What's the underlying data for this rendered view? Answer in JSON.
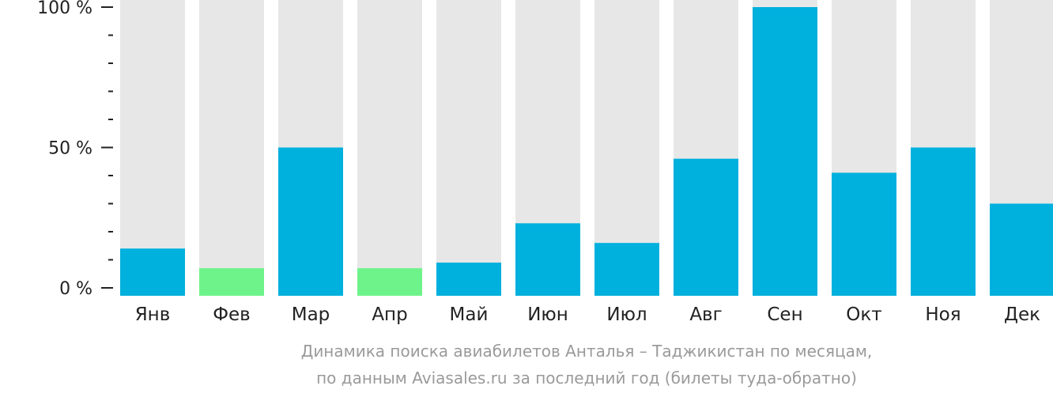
{
  "chart_data": {
    "type": "bar",
    "categories": [
      "Янв",
      "Фев",
      "Мар",
      "Апр",
      "Май",
      "Июн",
      "Июл",
      "Авг",
      "Сен",
      "Окт",
      "Ноя",
      "Дек"
    ],
    "values": [
      14,
      7,
      50,
      7,
      9,
      23,
      16,
      46,
      100,
      41,
      50,
      30
    ],
    "highlighted": [
      false,
      true,
      false,
      true,
      false,
      false,
      false,
      false,
      false,
      false,
      false,
      false
    ],
    "ylim": [
      0,
      100
    ],
    "y_ticks": [
      "0 %",
      "50 %",
      "100 %"
    ],
    "y_tick_values": [
      0,
      50,
      100
    ],
    "y_minor_step": 10,
    "colors": {
      "bar": "#00b0dd",
      "bar_low": "#6ef38a",
      "track": "#e7e7e7",
      "axis": "#222222"
    }
  },
  "caption": {
    "line1": "Динамика поиска авиабилетов Анталья – Таджикистан по месяцам,",
    "line2": "по данным Aviasales.ru за последний год (билеты туда-обратно)"
  }
}
